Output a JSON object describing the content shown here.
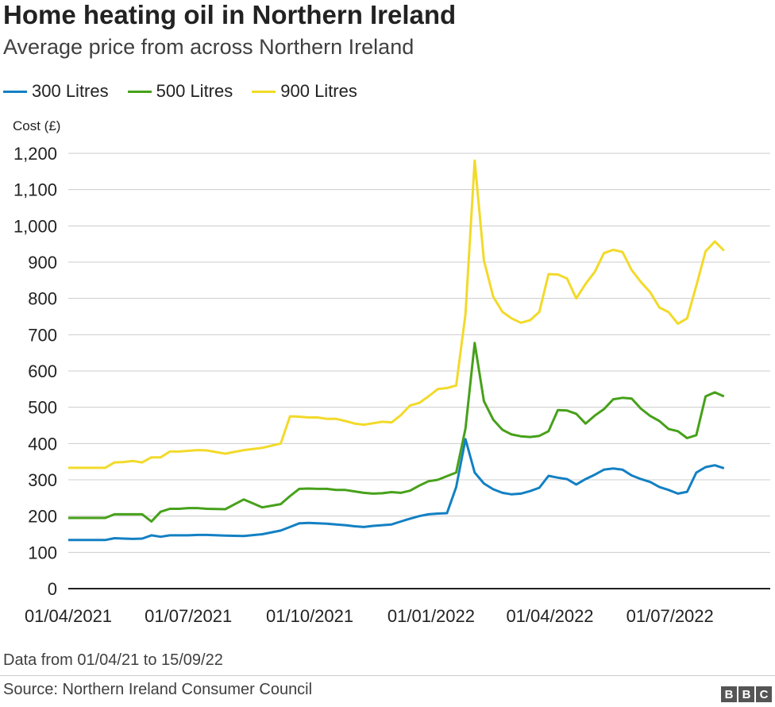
{
  "header": {
    "title": "Home heating oil in Northern Ireland",
    "subtitle": "Average price from across Northern Ireland"
  },
  "footer": {
    "note": "Data from 01/04/21 to 15/09/22",
    "source": "Source: Northern Ireland Consumer Council",
    "logo_letters": [
      "B",
      "B",
      "C"
    ]
  },
  "chart_data": {
    "type": "line",
    "title": "Home heating oil in Northern Ireland",
    "subtitle": "Average price from across Northern Ireland",
    "xlabel": "",
    "ylabel": "Cost (£)",
    "ylim": [
      0,
      1200
    ],
    "xlim": [
      "2021-04-01",
      "2022-09-15"
    ],
    "yticks": [
      0,
      100,
      200,
      300,
      400,
      500,
      600,
      700,
      800,
      900,
      1000,
      1100,
      1200
    ],
    "ytick_labels": [
      "0",
      "100",
      "200",
      "300",
      "400",
      "500",
      "600",
      "700",
      "800",
      "900",
      "1,000",
      "1,100",
      "1,200"
    ],
    "xticks": [
      "2021-04-01",
      "2021-07-01",
      "2021-10-01",
      "2022-01-01",
      "2022-04-01",
      "2022-07-01"
    ],
    "xtick_labels": [
      "01/04/2021",
      "01/07/2021",
      "01/10/2021",
      "01/01/2022",
      "01/04/2022",
      "01/07/2022"
    ],
    "grid": "horizontal",
    "legend_position": "top-left",
    "x": [
      "2021-04-01",
      "2021-04-15",
      "2021-04-29",
      "2021-05-06",
      "2021-05-13",
      "2021-05-20",
      "2021-05-27",
      "2021-06-03",
      "2021-06-10",
      "2021-06-17",
      "2021-06-24",
      "2021-07-01",
      "2021-07-08",
      "2021-07-15",
      "2021-07-29",
      "2021-08-12",
      "2021-08-26",
      "2021-09-09",
      "2021-09-16",
      "2021-09-23",
      "2021-09-30",
      "2021-10-07",
      "2021-10-14",
      "2021-10-21",
      "2021-10-28",
      "2021-11-04",
      "2021-11-11",
      "2021-11-18",
      "2021-11-25",
      "2021-12-02",
      "2021-12-09",
      "2021-12-16",
      "2021-12-23",
      "2021-12-30",
      "2022-01-06",
      "2022-01-13",
      "2022-01-20",
      "2022-01-27",
      "2022-02-03",
      "2022-02-10",
      "2022-02-17",
      "2022-02-24",
      "2022-03-03",
      "2022-03-10",
      "2022-03-17",
      "2022-03-24",
      "2022-03-31",
      "2022-04-07",
      "2022-04-14",
      "2022-04-21",
      "2022-04-28",
      "2022-05-05",
      "2022-05-12",
      "2022-05-19",
      "2022-05-26",
      "2022-06-02",
      "2022-06-09",
      "2022-06-16",
      "2022-06-23",
      "2022-06-30",
      "2022-07-07",
      "2022-07-14",
      "2022-07-21",
      "2022-07-28",
      "2022-08-04",
      "2022-08-11",
      "2022-08-18",
      "2022-08-25",
      "2022-09-01",
      "2022-09-08",
      "2022-09-15"
    ],
    "series": [
      {
        "name": "300 Litres",
        "color": "#1380c3",
        "values": [
          134,
          134,
          134,
          139,
          138,
          137,
          138,
          147,
          143,
          147,
          147,
          147,
          148,
          148,
          146,
          145,
          150,
          160,
          170,
          180,
          181,
          180,
          179,
          177,
          175,
          172,
          170,
          173,
          175,
          177,
          185,
          193,
          200,
          205,
          207,
          208,
          280,
          412,
          320,
          290,
          274,
          264,
          260,
          262,
          269,
          278,
          311,
          306,
          302,
          287,
          302,
          314,
          328,
          331,
          328,
          312,
          302,
          294,
          280,
          272,
          262,
          267,
          320,
          335,
          340,
          332,
          332,
          332,
          332,
          332,
          332
        ],
        "values_note": ""
      },
      {
        "name": "500 Litres",
        "color": "#46a11a",
        "values": [
          195,
          195,
          195,
          205,
          205,
          205,
          205,
          185,
          212,
          220,
          220,
          222,
          222,
          220,
          219,
          246,
          224,
          233,
          255,
          275,
          276,
          275,
          275,
          272,
          272,
          268,
          264,
          262,
          263,
          266,
          264,
          270,
          284,
          296,
          300,
          310,
          320,
          441,
          677,
          517,
          466,
          438,
          425,
          420,
          418,
          421,
          434,
          492,
          491,
          482,
          455,
          477,
          495,
          522,
          526,
          524,
          496,
          476,
          462,
          440,
          434,
          415,
          423,
          530,
          541,
          530,
          530,
          530,
          530,
          530,
          530
        ]
      },
      {
        "name": "900 Litres",
        "color": "#f2da2a",
        "values": [
          333,
          333,
          333,
          348,
          349,
          352,
          348,
          362,
          362,
          378,
          378,
          380,
          382,
          381,
          372,
          382,
          388,
          400,
          475,
          474,
          472,
          472,
          468,
          468,
          462,
          455,
          452,
          456,
          460,
          458,
          478,
          505,
          512,
          530,
          550,
          553,
          560,
          757,
          1180,
          905,
          805,
          763,
          745,
          733,
          740,
          763,
          867,
          866,
          855,
          800,
          840,
          873,
          925,
          934,
          928,
          878,
          845,
          817,
          775,
          762,
          730,
          745,
          835,
          930,
          957,
          932,
          932,
          932,
          932,
          932,
          932
        ]
      }
    ]
  }
}
